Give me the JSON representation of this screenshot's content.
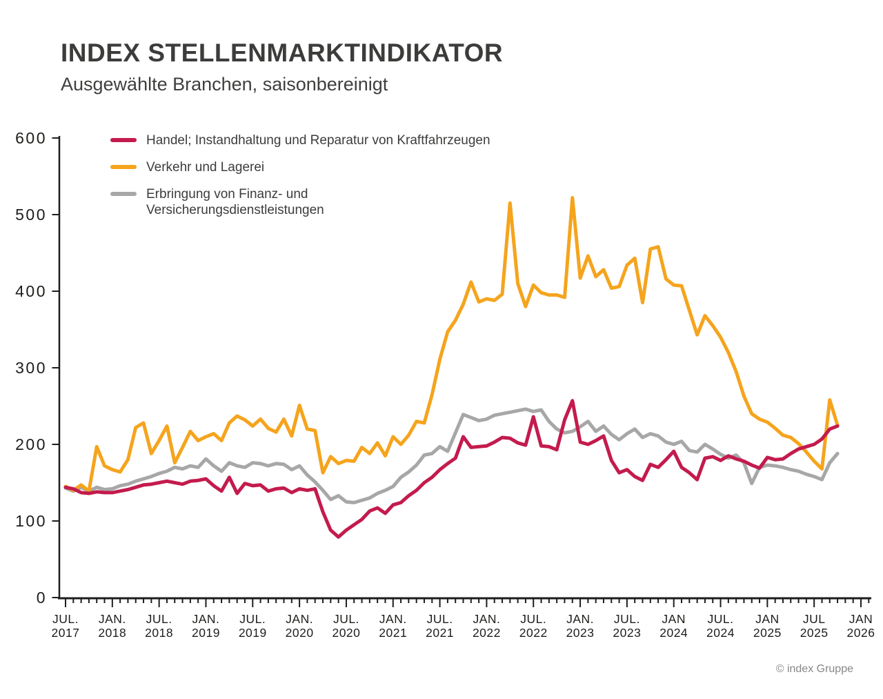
{
  "header": {
    "title": "INDEX STELLENMARKTINDIKATOR",
    "subtitle": "Ausgewählte Branchen, saisonbereinigt"
  },
  "footer": {
    "copyright": "© index Gruppe"
  },
  "chart_data": {
    "type": "line",
    "title": "INDEX STELLENMARKTINDIKATOR",
    "subtitle": "Ausgewählte Branchen, saisonbereinigt",
    "x_unit": "month",
    "x_start": "2017-07",
    "x_end": "2025-10",
    "ylim": [
      0,
      600
    ],
    "y_ticks": [
      0,
      100,
      200,
      300,
      400,
      500,
      600
    ],
    "grid": false,
    "legend_position": "top-left",
    "axis_color": "#1d1d1b",
    "tick_label_color": "#1d1d1b",
    "x_tick_labels": [
      [
        "JUL.",
        "2017"
      ],
      [
        "JAN.",
        "2018"
      ],
      [
        "JUL.",
        "2018"
      ],
      [
        "JAN.",
        "2019"
      ],
      [
        "JUL.",
        "2019"
      ],
      [
        "JAN.",
        "2020"
      ],
      [
        "JUL.",
        "2020"
      ],
      [
        "JAN.",
        "2021"
      ],
      [
        "JUL.",
        "2021"
      ],
      [
        "JAN.",
        "2022"
      ],
      [
        "JUL.",
        "2022"
      ],
      [
        "JAN.",
        "2023"
      ],
      [
        "JUL.",
        "2023"
      ],
      [
        "JAN",
        "2024"
      ],
      [
        "JUL.",
        "2024"
      ],
      [
        "JAN",
        "2025"
      ],
      [
        "JUL",
        "2025"
      ],
      [
        "JAN",
        "2026"
      ]
    ],
    "months_per_major_tick": 6,
    "series": [
      {
        "name": "Handel; Instandhaltung und Reparatur von Kraftfahrzeugen",
        "legend_label": "Handel; Instandhaltung und Reparatur von Kraftfahrzeugen",
        "color": "#c31b4d",
        "values": [
          144,
          142,
          137,
          136,
          138,
          137,
          137,
          139,
          141,
          144,
          147,
          148,
          150,
          152,
          150,
          148,
          152,
          153,
          155,
          146,
          139,
          157,
          136,
          149,
          146,
          147,
          139,
          142,
          143,
          137,
          142,
          140,
          142,
          112,
          88,
          79,
          88,
          95,
          102,
          113,
          117,
          110,
          121,
          124,
          133,
          140,
          150,
          157,
          167,
          175,
          182,
          210,
          196,
          197,
          198,
          203,
          209,
          208,
          202,
          199,
          236,
          198,
          197,
          193,
          232,
          257,
          203,
          200,
          205,
          211,
          179,
          163,
          167,
          158,
          153,
          174,
          170,
          180,
          191,
          170,
          163,
          154,
          182,
          184,
          179,
          185,
          181,
          178,
          173,
          169,
          183,
          180,
          181,
          188,
          194,
          197,
          200,
          207,
          220,
          224
        ]
      },
      {
        "name": "Verkehr und Lagerei",
        "legend_label": "Verkehr und Lagerei",
        "color": "#f5a41d",
        "values": [
          145,
          140,
          147,
          139,
          197,
          172,
          167,
          164,
          180,
          222,
          228,
          188,
          205,
          224,
          176,
          196,
          217,
          205,
          210,
          214,
          205,
          228,
          237,
          232,
          224,
          233,
          221,
          216,
          233,
          211,
          251,
          220,
          218,
          163,
          184,
          175,
          179,
          178,
          196,
          188,
          202,
          185,
          210,
          200,
          212,
          230,
          228,
          265,
          311,
          347,
          362,
          383,
          412,
          386,
          390,
          388,
          396,
          515,
          410,
          380,
          408,
          398,
          395,
          395,
          392,
          522,
          417,
          446,
          419,
          428,
          404,
          406,
          434,
          443,
          385,
          455,
          458,
          416,
          408,
          407,
          375,
          343,
          368,
          355,
          340,
          320,
          295,
          263,
          240,
          233,
          229,
          221,
          212,
          209,
          201,
          190,
          178,
          168,
          258,
          225
        ]
      },
      {
        "name": "Erbringung von Finanz- und Versicherungsdienstleistungen",
        "legend_label": "Erbringung von Finanz- und\nVersicherungsdienstleistungen",
        "color": "#a7a7a8",
        "values": [
          143,
          139,
          144,
          139,
          144,
          141,
          142,
          146,
          148,
          152,
          155,
          158,
          162,
          165,
          170,
          168,
          172,
          170,
          181,
          172,
          165,
          176,
          172,
          170,
          176,
          175,
          172,
          175,
          174,
          167,
          172,
          160,
          151,
          140,
          128,
          133,
          125,
          124,
          127,
          130,
          136,
          140,
          145,
          157,
          164,
          173,
          186,
          188,
          197,
          191,
          215,
          239,
          235,
          231,
          233,
          238,
          240,
          242,
          244,
          246,
          243,
          245,
          230,
          220,
          215,
          217,
          223,
          230,
          217,
          224,
          213,
          206,
          214,
          220,
          209,
          214,
          211,
          203,
          200,
          204,
          192,
          190,
          200,
          194,
          187,
          182,
          186,
          176,
          149,
          170,
          173,
          172,
          170,
          167,
          165,
          161,
          158,
          154,
          176,
          188
        ]
      }
    ]
  }
}
